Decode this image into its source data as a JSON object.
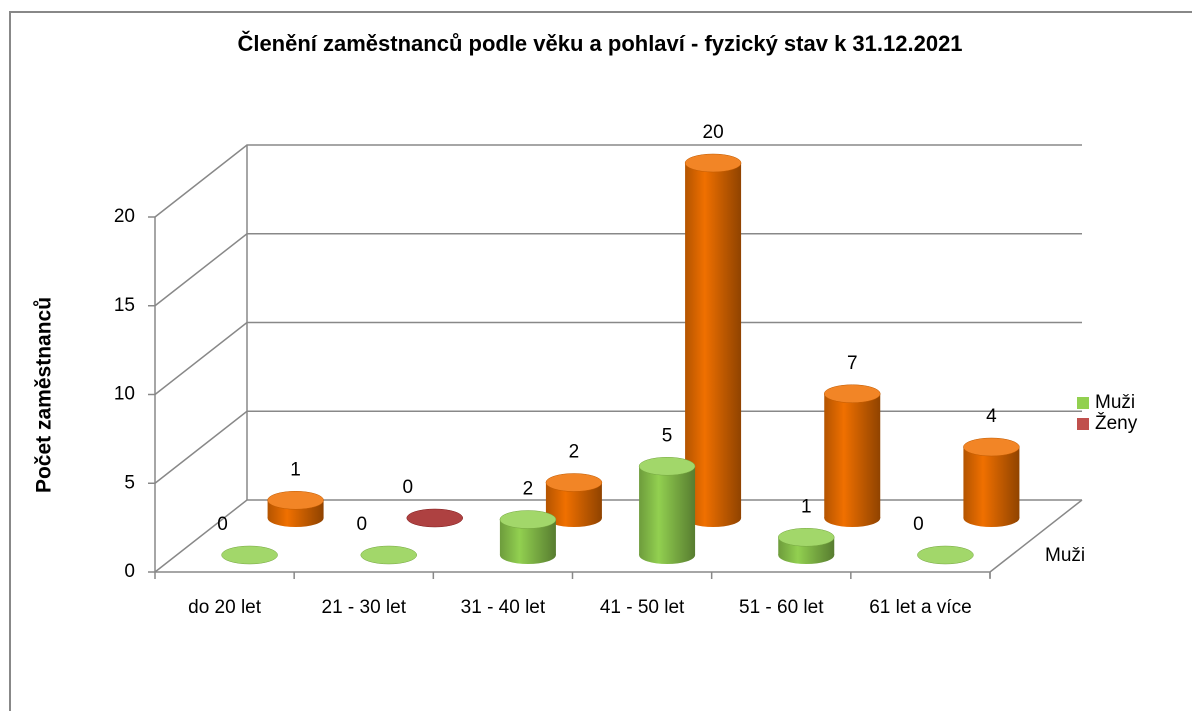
{
  "chart_data": {
    "type": "bar3d",
    "title": "Členění zaměstnanců podle věku a pohlaví - fyzický stav k 31.12.2021",
    "y_label": "Počet zaměstnanců",
    "categories": [
      "do 20 let",
      "21 - 30 let",
      "31 - 40 let",
      "41 - 50 let",
      "51 - 60 let",
      "61 let a více"
    ],
    "series": [
      {
        "name": "Muži",
        "color": "#92d050",
        "values": [
          0,
          0,
          2,
          5,
          1,
          0
        ]
      },
      {
        "name": "Ženy",
        "color": "#c0504d",
        "values": [
          1,
          0,
          2,
          20,
          7,
          4
        ],
        "colors": [
          "#f07000",
          "#a02020",
          "#f07000",
          "#f07000",
          "#f07000",
          "#f07000"
        ]
      }
    ],
    "ylim": [
      0,
      20
    ],
    "yticks": [
      0,
      5,
      10,
      15,
      20
    ],
    "grid": true,
    "legend": "right"
  }
}
